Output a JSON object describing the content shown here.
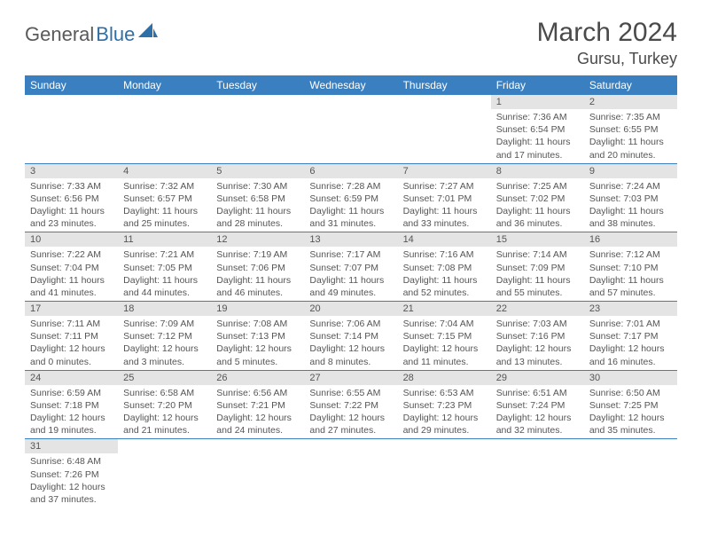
{
  "logo": {
    "text_general": "General",
    "text_blue": "Blue"
  },
  "header": {
    "title": "March 2024",
    "location": "Gursu, Turkey"
  },
  "colors": {
    "header_bg": "#3a7fbf",
    "header_text": "#ffffff",
    "daynum_bg": "#e4e4e4",
    "cell_border": "#3a7fbf",
    "body_text": "#555555",
    "title_text": "#4a4a4a"
  },
  "typography": {
    "title_fontsize": 30,
    "location_fontsize": 18,
    "dayheader_fontsize": 12,
    "daynum_fontsize": 11,
    "cell_fontsize": 10.5
  },
  "day_headers": [
    "Sunday",
    "Monday",
    "Tuesday",
    "Wednesday",
    "Thursday",
    "Friday",
    "Saturday"
  ],
  "weeks": [
    [
      null,
      null,
      null,
      null,
      null,
      {
        "n": "1",
        "sunrise": "Sunrise: 7:36 AM",
        "sunset": "Sunset: 6:54 PM",
        "daylight": "Daylight: 11 hours and 17 minutes."
      },
      {
        "n": "2",
        "sunrise": "Sunrise: 7:35 AM",
        "sunset": "Sunset: 6:55 PM",
        "daylight": "Daylight: 11 hours and 20 minutes."
      }
    ],
    [
      {
        "n": "3",
        "sunrise": "Sunrise: 7:33 AM",
        "sunset": "Sunset: 6:56 PM",
        "daylight": "Daylight: 11 hours and 23 minutes."
      },
      {
        "n": "4",
        "sunrise": "Sunrise: 7:32 AM",
        "sunset": "Sunset: 6:57 PM",
        "daylight": "Daylight: 11 hours and 25 minutes."
      },
      {
        "n": "5",
        "sunrise": "Sunrise: 7:30 AM",
        "sunset": "Sunset: 6:58 PM",
        "daylight": "Daylight: 11 hours and 28 minutes."
      },
      {
        "n": "6",
        "sunrise": "Sunrise: 7:28 AM",
        "sunset": "Sunset: 6:59 PM",
        "daylight": "Daylight: 11 hours and 31 minutes."
      },
      {
        "n": "7",
        "sunrise": "Sunrise: 7:27 AM",
        "sunset": "Sunset: 7:01 PM",
        "daylight": "Daylight: 11 hours and 33 minutes."
      },
      {
        "n": "8",
        "sunrise": "Sunrise: 7:25 AM",
        "sunset": "Sunset: 7:02 PM",
        "daylight": "Daylight: 11 hours and 36 minutes."
      },
      {
        "n": "9",
        "sunrise": "Sunrise: 7:24 AM",
        "sunset": "Sunset: 7:03 PM",
        "daylight": "Daylight: 11 hours and 38 minutes."
      }
    ],
    [
      {
        "n": "10",
        "sunrise": "Sunrise: 7:22 AM",
        "sunset": "Sunset: 7:04 PM",
        "daylight": "Daylight: 11 hours and 41 minutes."
      },
      {
        "n": "11",
        "sunrise": "Sunrise: 7:21 AM",
        "sunset": "Sunset: 7:05 PM",
        "daylight": "Daylight: 11 hours and 44 minutes."
      },
      {
        "n": "12",
        "sunrise": "Sunrise: 7:19 AM",
        "sunset": "Sunset: 7:06 PM",
        "daylight": "Daylight: 11 hours and 46 minutes."
      },
      {
        "n": "13",
        "sunrise": "Sunrise: 7:17 AM",
        "sunset": "Sunset: 7:07 PM",
        "daylight": "Daylight: 11 hours and 49 minutes."
      },
      {
        "n": "14",
        "sunrise": "Sunrise: 7:16 AM",
        "sunset": "Sunset: 7:08 PM",
        "daylight": "Daylight: 11 hours and 52 minutes."
      },
      {
        "n": "15",
        "sunrise": "Sunrise: 7:14 AM",
        "sunset": "Sunset: 7:09 PM",
        "daylight": "Daylight: 11 hours and 55 minutes."
      },
      {
        "n": "16",
        "sunrise": "Sunrise: 7:12 AM",
        "sunset": "Sunset: 7:10 PM",
        "daylight": "Daylight: 11 hours and 57 minutes."
      }
    ],
    [
      {
        "n": "17",
        "sunrise": "Sunrise: 7:11 AM",
        "sunset": "Sunset: 7:11 PM",
        "daylight": "Daylight: 12 hours and 0 minutes."
      },
      {
        "n": "18",
        "sunrise": "Sunrise: 7:09 AM",
        "sunset": "Sunset: 7:12 PM",
        "daylight": "Daylight: 12 hours and 3 minutes."
      },
      {
        "n": "19",
        "sunrise": "Sunrise: 7:08 AM",
        "sunset": "Sunset: 7:13 PM",
        "daylight": "Daylight: 12 hours and 5 minutes."
      },
      {
        "n": "20",
        "sunrise": "Sunrise: 7:06 AM",
        "sunset": "Sunset: 7:14 PM",
        "daylight": "Daylight: 12 hours and 8 minutes."
      },
      {
        "n": "21",
        "sunrise": "Sunrise: 7:04 AM",
        "sunset": "Sunset: 7:15 PM",
        "daylight": "Daylight: 12 hours and 11 minutes."
      },
      {
        "n": "22",
        "sunrise": "Sunrise: 7:03 AM",
        "sunset": "Sunset: 7:16 PM",
        "daylight": "Daylight: 12 hours and 13 minutes."
      },
      {
        "n": "23",
        "sunrise": "Sunrise: 7:01 AM",
        "sunset": "Sunset: 7:17 PM",
        "daylight": "Daylight: 12 hours and 16 minutes."
      }
    ],
    [
      {
        "n": "24",
        "sunrise": "Sunrise: 6:59 AM",
        "sunset": "Sunset: 7:18 PM",
        "daylight": "Daylight: 12 hours and 19 minutes."
      },
      {
        "n": "25",
        "sunrise": "Sunrise: 6:58 AM",
        "sunset": "Sunset: 7:20 PM",
        "daylight": "Daylight: 12 hours and 21 minutes."
      },
      {
        "n": "26",
        "sunrise": "Sunrise: 6:56 AM",
        "sunset": "Sunset: 7:21 PM",
        "daylight": "Daylight: 12 hours and 24 minutes."
      },
      {
        "n": "27",
        "sunrise": "Sunrise: 6:55 AM",
        "sunset": "Sunset: 7:22 PM",
        "daylight": "Daylight: 12 hours and 27 minutes."
      },
      {
        "n": "28",
        "sunrise": "Sunrise: 6:53 AM",
        "sunset": "Sunset: 7:23 PM",
        "daylight": "Daylight: 12 hours and 29 minutes."
      },
      {
        "n": "29",
        "sunrise": "Sunrise: 6:51 AM",
        "sunset": "Sunset: 7:24 PM",
        "daylight": "Daylight: 12 hours and 32 minutes."
      },
      {
        "n": "30",
        "sunrise": "Sunrise: 6:50 AM",
        "sunset": "Sunset: 7:25 PM",
        "daylight": "Daylight: 12 hours and 35 minutes."
      }
    ],
    [
      {
        "n": "31",
        "sunrise": "Sunrise: 6:48 AM",
        "sunset": "Sunset: 7:26 PM",
        "daylight": "Daylight: 12 hours and 37 minutes."
      },
      null,
      null,
      null,
      null,
      null,
      null
    ]
  ]
}
